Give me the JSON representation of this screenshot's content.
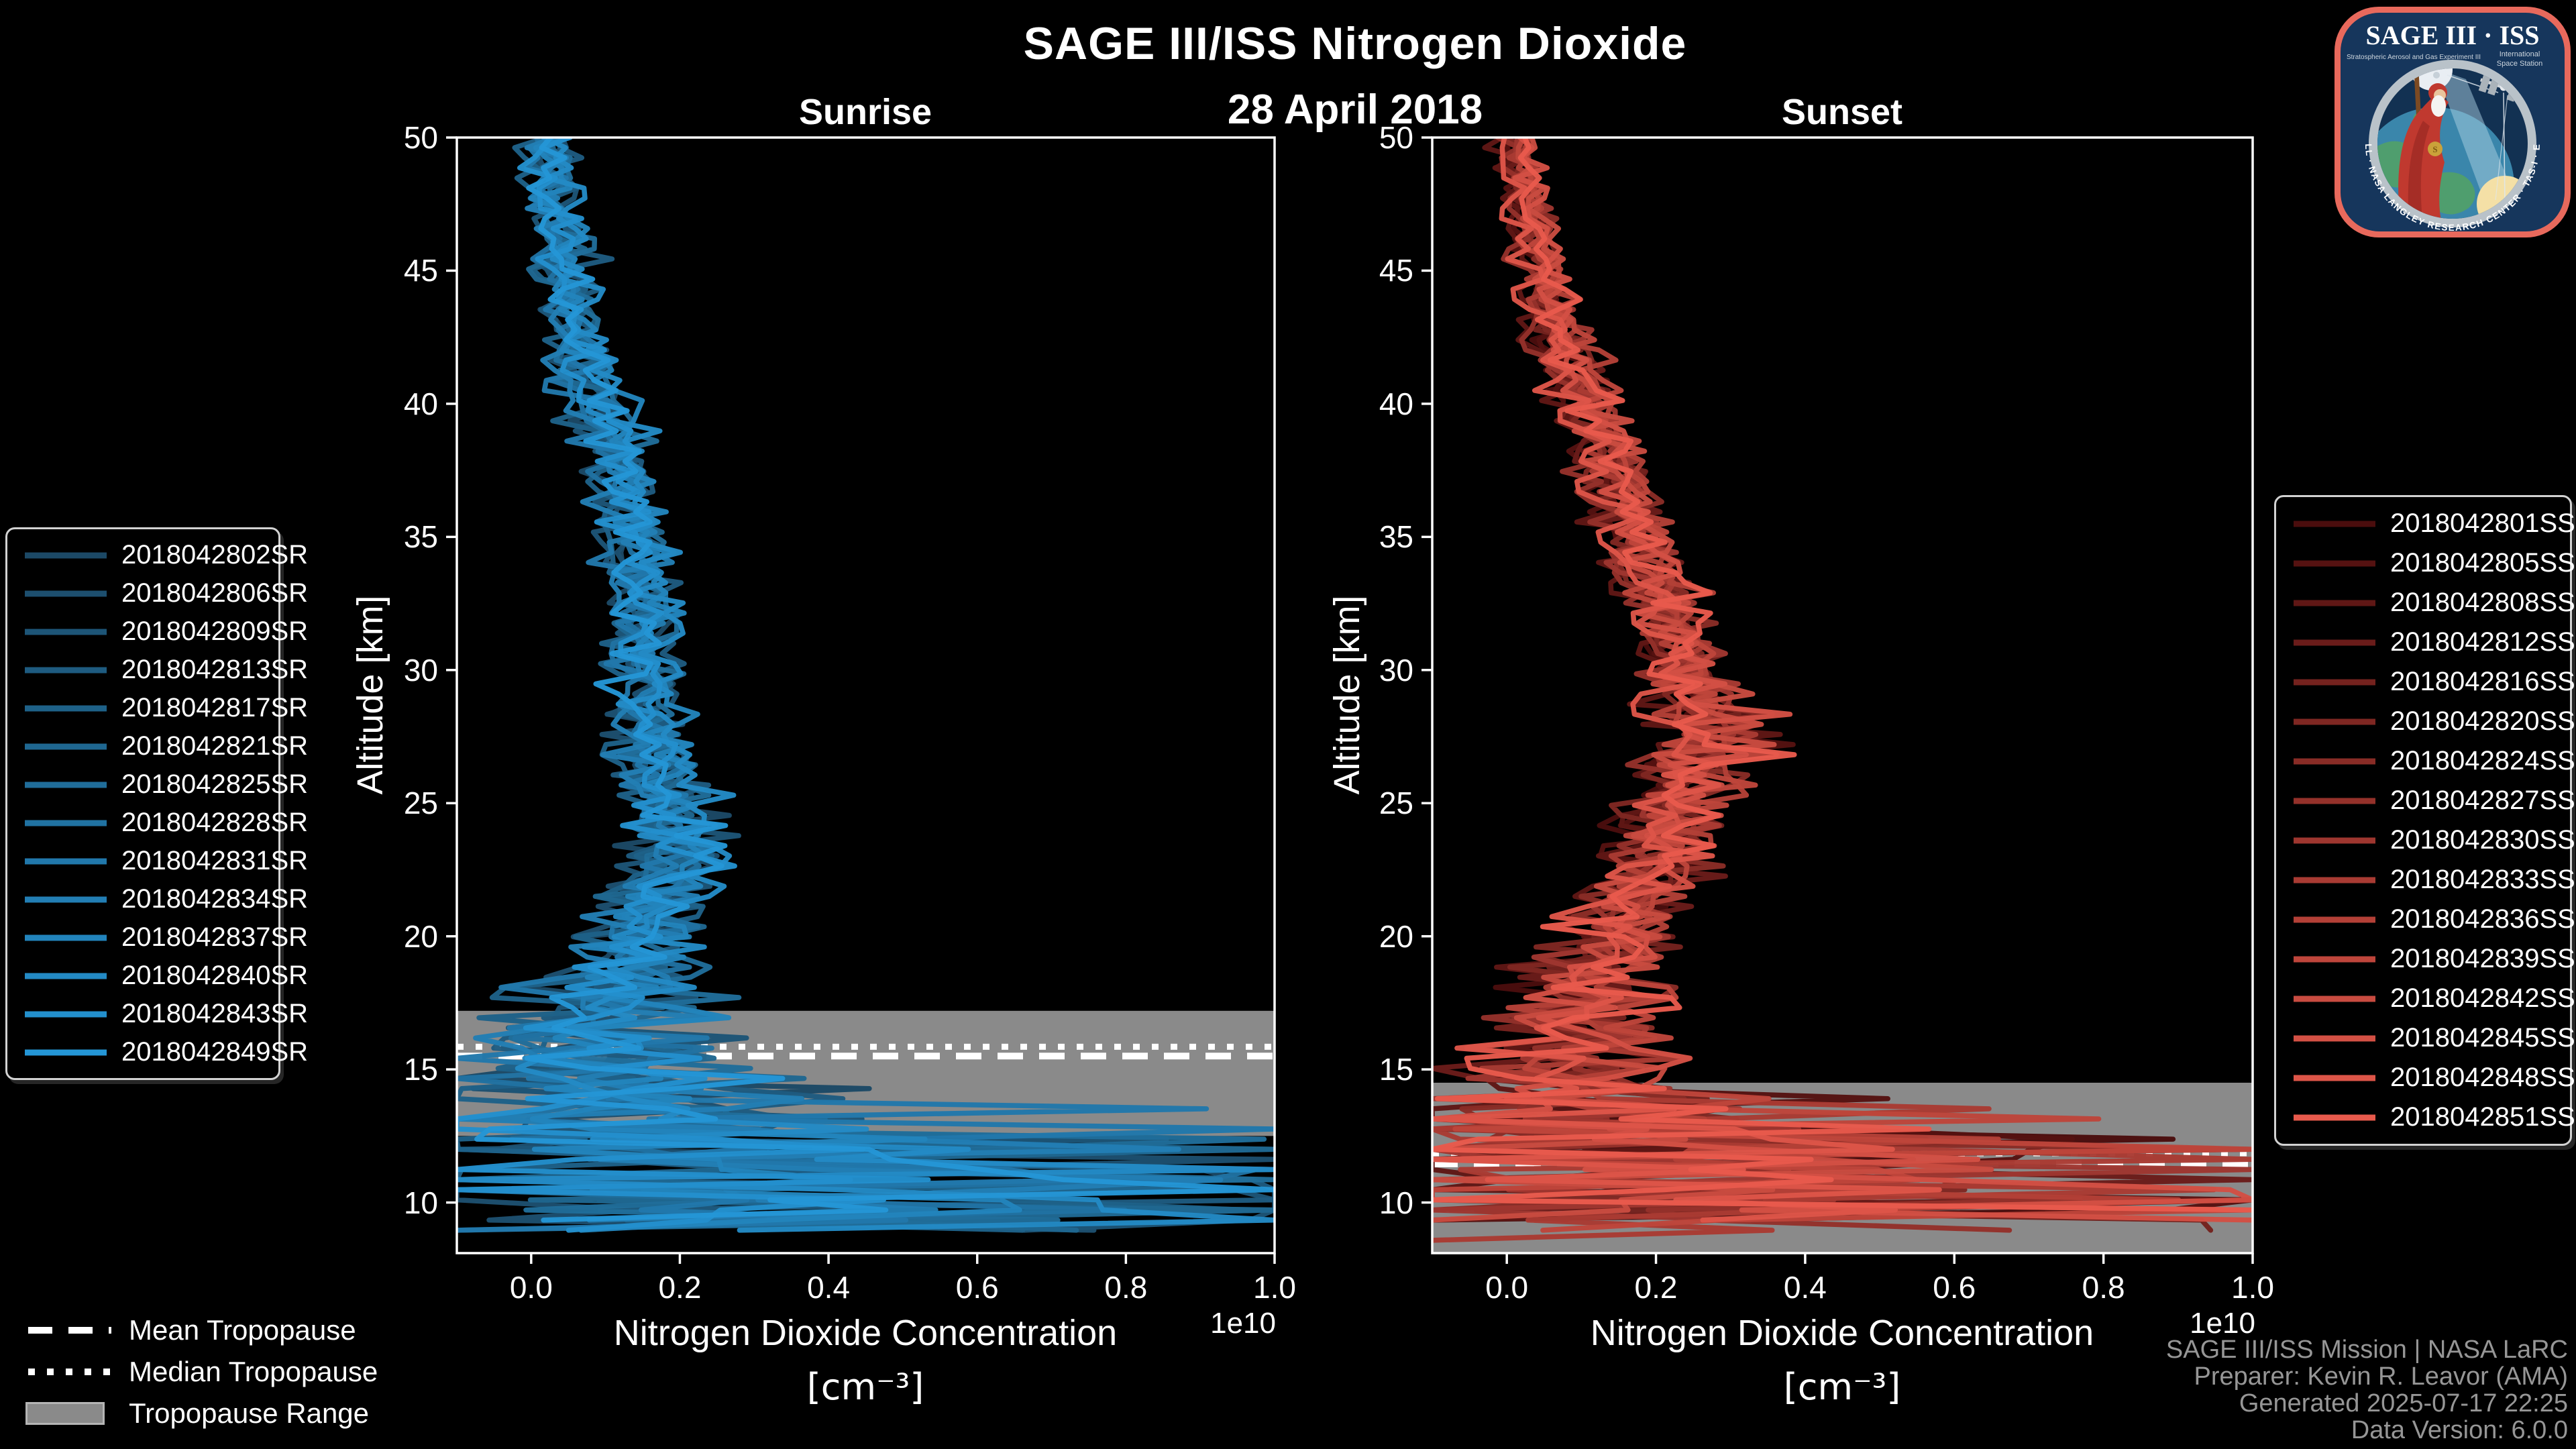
{
  "header": {
    "title": "SAGE III/ISS Nitrogen Dioxide",
    "date": "28 April 2018"
  },
  "colors": {
    "background": "#000000",
    "text": "#ffffff",
    "muted_text": "#969696",
    "frame": "#ffffff",
    "tropopause_band": "#8a8a8a",
    "tropopause_lines": "#ffffff"
  },
  "axes": {
    "ylabel": "Altitude [km]",
    "xlabel_line1": "Nitrogen Dioxide Concentration",
    "xlabel_line2": "[cm⁻³]",
    "offset_label": "1e10",
    "x_tick_labels": [
      "0.0",
      "0.2",
      "0.4",
      "0.6",
      "0.8",
      "1.0"
    ],
    "x_tick_values": [
      0.0,
      0.2,
      0.4,
      0.6,
      0.8,
      1.0
    ],
    "y_tick_values": [
      50,
      45,
      40,
      35,
      30,
      25,
      20,
      15,
      10
    ],
    "xlim": [
      -0.1,
      1.0
    ],
    "ylim": [
      8.1,
      50
    ]
  },
  "tropopause_legend": {
    "mean": "Mean Tropopause",
    "median": "Median Tropopause",
    "range": "Tropopause Range"
  },
  "attribution": {
    "line1": "SAGE III/ISS Mission | NASA LaRC",
    "line2": "Preparer: Kevin R. Leavor (AMA)",
    "line3": "Generated 2025-07-17 22:25",
    "line4": "Data Version: 6.0.0"
  },
  "logo": {
    "title": "SAGE III · ISS",
    "subtitle_left": "Stratospheric Aerosol and Gas Experiment III",
    "subtitle_right_1": "International",
    "subtitle_right_2": "Space Station",
    "ring_text": "BALL · NASA LANGLEY RESEARCH CENTER · TAS-I · ESA",
    "border_color": "#e8695c",
    "field_color": "#16365c"
  },
  "chart_data": [
    {
      "type": "line",
      "title": "Sunrise",
      "xlabel": "Nitrogen Dioxide Concentration [cm⁻³]",
      "ylabel": "Altitude [km]",
      "xlim": [
        -0.1,
        1.0
      ],
      "ylim": [
        8.1,
        50
      ],
      "grid": false,
      "legend_position": "outside-left",
      "series_names": [
        "2018042802SR",
        "2018042806SR",
        "2018042809SR",
        "2018042813SR",
        "2018042817SR",
        "2018042821SR",
        "2018042825SR",
        "2018042828SR",
        "2018042831SR",
        "2018042834SR",
        "2018042837SR",
        "2018042840SR",
        "2018042843SR",
        "2018042849SR"
      ],
      "series_colors": [
        "#1c4966",
        "#1d4f6f",
        "#1d5577",
        "#1e5b80",
        "#1e6188",
        "#1f6791",
        "#206d9a",
        "#2072a2",
        "#2178ab",
        "#227eb4",
        "#2284bc",
        "#238ac5",
        "#2390cd",
        "#2496d6"
      ],
      "alt_km": [
        50,
        48,
        46,
        44,
        42,
        40,
        38,
        36,
        34,
        32,
        30,
        28,
        26,
        24,
        23,
        22,
        20,
        18,
        16,
        15,
        14,
        13,
        12,
        11,
        10,
        9.5,
        9,
        8.5
      ],
      "mean_1e10": [
        0.02,
        0.03,
        0.04,
        0.05,
        0.06,
        0.09,
        0.12,
        0.13,
        0.14,
        0.15,
        0.15,
        0.16,
        0.17,
        0.19,
        0.2,
        0.18,
        0.15,
        0.12,
        0.09,
        0.08,
        0.11,
        0.14,
        0.18,
        0.23,
        0.28,
        0.33,
        0.28,
        0.23
      ],
      "spread_1e10": [
        0.035,
        0.035,
        0.04,
        0.04,
        0.045,
        0.05,
        0.05,
        0.05,
        0.05,
        0.05,
        0.05,
        0.055,
        0.06,
        0.07,
        0.08,
        0.08,
        0.09,
        0.13,
        0.2,
        0.24,
        0.3,
        0.38,
        0.48,
        0.55,
        0.6,
        0.55,
        0.45,
        0.35
      ],
      "tropopause": {
        "band_top_km": 17.2,
        "band_bottom_km": 12.5,
        "median_km": 15.85,
        "mean_km": 15.5
      }
    },
    {
      "type": "line",
      "title": "Sunset",
      "xlabel": "Nitrogen Dioxide Concentration [cm⁻³]",
      "ylabel": "Altitude [km]",
      "xlim": [
        -0.1,
        1.0
      ],
      "ylim": [
        8.1,
        50
      ],
      "grid": false,
      "legend_position": "outside-right",
      "series_names": [
        "2018042801SS",
        "2018042805SS",
        "2018042808SS",
        "2018042812SS",
        "2018042816SS",
        "2018042820SS",
        "2018042824SS",
        "2018042827SS",
        "2018042830SS",
        "2018042833SS",
        "2018042836SS",
        "2018042839SS",
        "2018042842SS",
        "2018042845SS",
        "2018042848SS",
        "2018042851SS"
      ],
      "series_colors": [
        "#4a0d0d",
        "#551211",
        "#5f1715",
        "#6a1c1a",
        "#74221e",
        "#7f2722",
        "#892c26",
        "#94312a",
        "#9e362f",
        "#a93b33",
        "#b34037",
        "#be453b",
        "#c84b40",
        "#d35044",
        "#dd5548",
        "#e85a4c"
      ],
      "alt_km": [
        50,
        48,
        46,
        44,
        42,
        40,
        38,
        36,
        34,
        32,
        30,
        28,
        26,
        24,
        23,
        22,
        20,
        18,
        16,
        15,
        14,
        13,
        12,
        11,
        10,
        9.5,
        9,
        8.5
      ],
      "mean_1e10": [
        0.01,
        0.02,
        0.03,
        0.05,
        0.07,
        0.1,
        0.13,
        0.16,
        0.18,
        0.21,
        0.23,
        0.25,
        0.24,
        0.21,
        0.2,
        0.18,
        0.14,
        0.1,
        0.08,
        0.07,
        0.08,
        0.1,
        0.15,
        0.22,
        0.3,
        0.33,
        0.28,
        0.22
      ],
      "spread_1e10": [
        0.02,
        0.025,
        0.03,
        0.035,
        0.04,
        0.045,
        0.045,
        0.05,
        0.05,
        0.055,
        0.06,
        0.065,
        0.07,
        0.07,
        0.08,
        0.08,
        0.09,
        0.12,
        0.16,
        0.21,
        0.27,
        0.35,
        0.47,
        0.55,
        0.6,
        0.55,
        0.45,
        0.35
      ],
      "tropopause": {
        "band_top_km": 14.5,
        "band_bottom_km": 8.1,
        "median_km": 11.85,
        "mean_km": 11.45
      }
    }
  ]
}
